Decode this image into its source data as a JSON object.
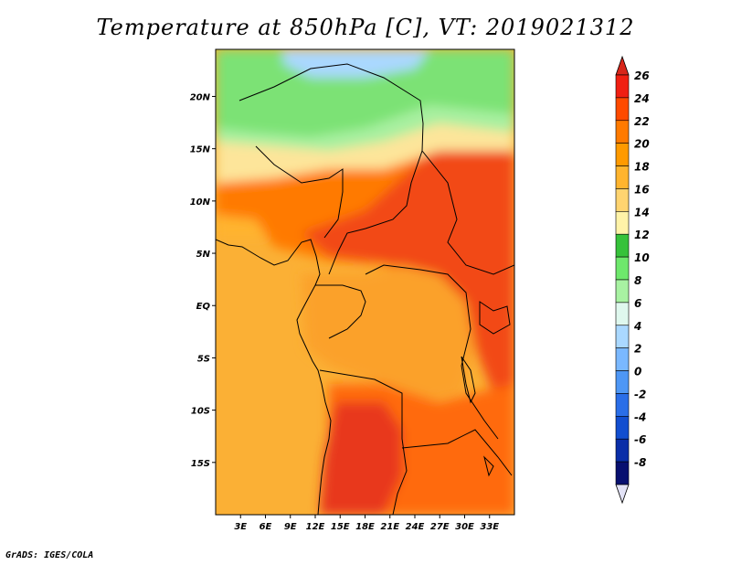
{
  "title": "Temperature at 850hPa [C], VT: 2019021312",
  "credit": "GrADS: IGES/COLA",
  "map": {
    "lon_range": [
      0,
      36
    ],
    "lat_range": [
      -20,
      24.5
    ],
    "lon_ticks": [
      {
        "value": 3,
        "label": "3E"
      },
      {
        "value": 6,
        "label": "6E"
      },
      {
        "value": 9,
        "label": "9E"
      },
      {
        "value": 12,
        "label": "12E"
      },
      {
        "value": 15,
        "label": "15E"
      },
      {
        "value": 18,
        "label": "18E"
      },
      {
        "value": 21,
        "label": "21E"
      },
      {
        "value": 24,
        "label": "24E"
      },
      {
        "value": 27,
        "label": "27E"
      },
      {
        "value": 30,
        "label": "30E"
      },
      {
        "value": 33,
        "label": "33E"
      }
    ],
    "lat_ticks": [
      {
        "value": 20,
        "label": "20N"
      },
      {
        "value": 15,
        "label": "15N"
      },
      {
        "value": 10,
        "label": "10N"
      },
      {
        "value": 5,
        "label": "5N"
      },
      {
        "value": 0,
        "label": "EQ"
      },
      {
        "value": -5,
        "label": "5S"
      },
      {
        "value": -10,
        "label": "10S"
      },
      {
        "value": -15,
        "label": "15S"
      }
    ]
  },
  "colorbar": {
    "labels": [
      "26",
      "24",
      "22",
      "20",
      "18",
      "16",
      "14",
      "12",
      "10",
      "8",
      "6",
      "4",
      "2",
      "0",
      "-2",
      "-4",
      "-6",
      "-8"
    ],
    "colors": [
      "#f01f12",
      "#ff4a00",
      "#ff7a00",
      "#ff9a00",
      "#ffb42e",
      "#ffd470",
      "#fff3a8",
      "#36c23a",
      "#6ee86c",
      "#a8f2a2",
      "#dff8ee",
      "#aad8ff",
      "#7ab8ff",
      "#4e97f5",
      "#2a6ee8",
      "#124ed0",
      "#0a2ea8",
      "#081070"
    ],
    "top_color": "#d8261a",
    "bottom_color": "#e2e2f6"
  },
  "regions": [
    {
      "name": "sahara-north-green",
      "color": "#7ce274"
    },
    {
      "name": "light-green-band",
      "color": "#a8f0a0"
    },
    {
      "name": "sky-blue-patch",
      "color": "#aad8ff"
    },
    {
      "name": "cool-band-16-18",
      "color": "#fde59a"
    },
    {
      "name": "west-africa-warm",
      "color": "#ffb42e"
    },
    {
      "name": "sahel-hot",
      "color": "#ff7a00"
    },
    {
      "name": "central-africa-hot",
      "color": "#f24a14"
    },
    {
      "name": "congo-mild",
      "color": "#fba12b"
    },
    {
      "name": "southern-hot",
      "color": "#ff6a10"
    },
    {
      "name": "angola-hottest",
      "color": "#e8381a"
    }
  ]
}
